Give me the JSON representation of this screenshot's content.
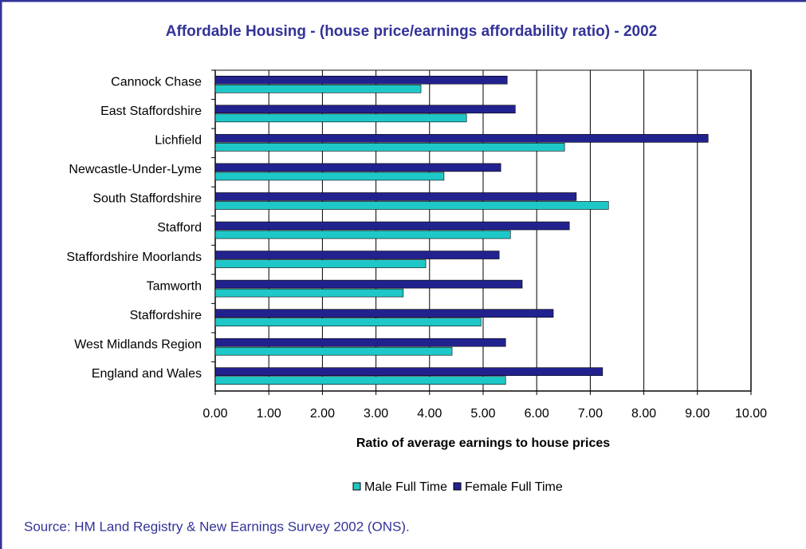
{
  "chart_data": {
    "type": "barh",
    "title": "Affordable Housing - (house price/earnings affordability ratio) - 2002",
    "categories": [
      "Cannock Chase",
      "East Staffordshire",
      "Lichfield",
      "Newcastle-Under-Lyme",
      "South Staffordshire",
      "Stafford",
      "Staffordshire Moorlands",
      "Tamworth",
      "Staffordshire",
      "West Midlands Region",
      "England and Wales"
    ],
    "series": [
      {
        "name": "Male Full Time",
        "color": "#1fc8c8",
        "values": [
          3.84,
          4.69,
          6.52,
          4.27,
          7.34,
          5.51,
          3.93,
          3.51,
          4.96,
          4.42,
          5.42
        ]
      },
      {
        "name": "Female Full Time",
        "color": "#22228f",
        "values": [
          5.45,
          5.6,
          9.2,
          5.33,
          6.74,
          6.61,
          5.3,
          5.73,
          6.31,
          5.42,
          7.23
        ]
      }
    ],
    "xlabel": "Ratio of average earnings to house prices",
    "xlim": [
      0,
      10
    ],
    "xticks": [
      {
        "value": 0,
        "label": "0.00"
      },
      {
        "value": 1,
        "label": "1.00"
      },
      {
        "value": 2,
        "label": "2.00"
      },
      {
        "value": 3,
        "label": "3.00"
      },
      {
        "value": 4,
        "label": "4.00"
      },
      {
        "value": 5,
        "label": "5.00"
      },
      {
        "value": 6,
        "label": "6.00"
      },
      {
        "value": 7,
        "label": "7.00"
      },
      {
        "value": 8,
        "label": "8.00"
      },
      {
        "value": 9,
        "label": "9.00"
      },
      {
        "value": 10,
        "label": "10.00"
      }
    ],
    "grid": true,
    "legend": "bottom",
    "source": "Source: HM Land Registry & New Earnings Survey 2002 (ONS)."
  }
}
